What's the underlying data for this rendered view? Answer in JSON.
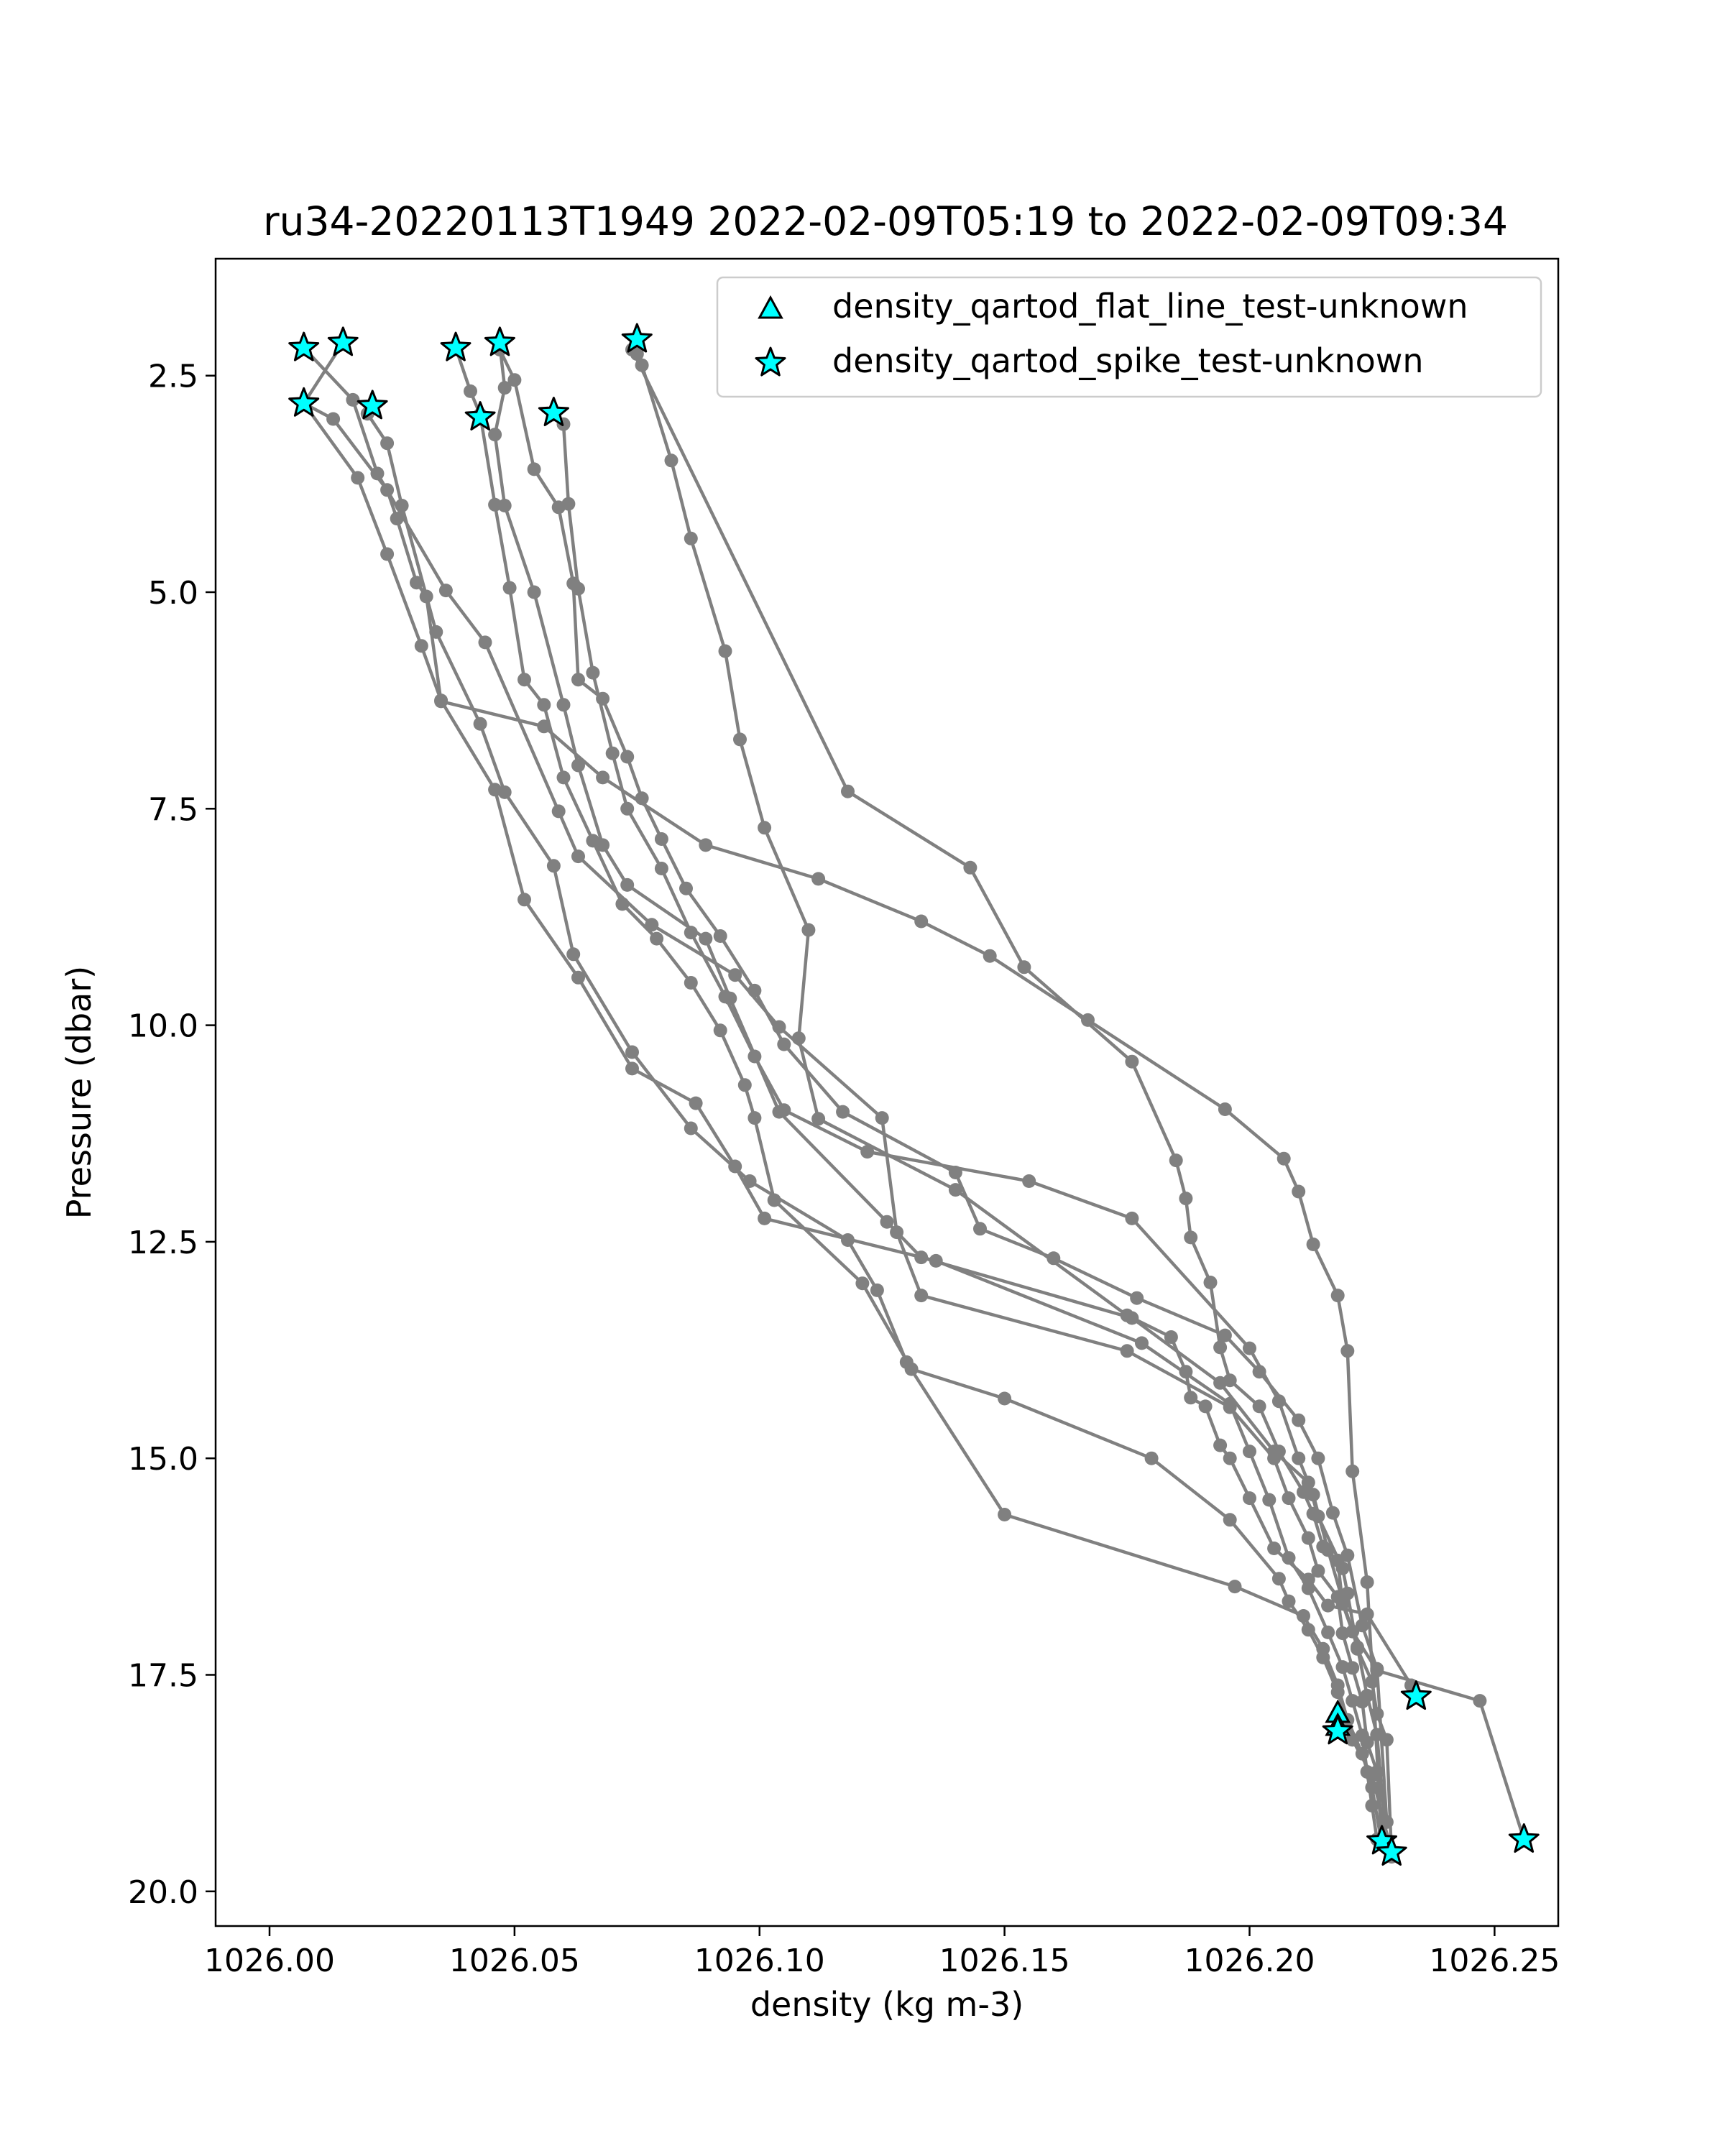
{
  "chart_data": {
    "type": "scatter",
    "title": "ru34-20220113T1949 2022-02-09T05:19 to 2022-02-09T09:34",
    "xlabel": "density (kg m-3)",
    "ylabel": "Pressure (dbar)",
    "xlim": [
      1025.989,
      1026.263
    ],
    "ylim": [
      20.4,
      1.15
    ],
    "y_inverted": true,
    "x_ticks": [
      1026.0,
      1026.05,
      1026.1,
      1026.15,
      1026.2,
      1026.25
    ],
    "x_tick_labels": [
      "1026.00",
      "1026.05",
      "1026.10",
      "1026.15",
      "1026.20",
      "1026.25"
    ],
    "y_ticks": [
      2.5,
      5.0,
      7.5,
      10.0,
      12.5,
      15.0,
      17.5,
      20.0
    ],
    "y_tick_labels": [
      "2.5",
      "5.0",
      "7.5",
      "10.0",
      "12.5",
      "15.0",
      "17.5",
      "20.0"
    ],
    "grid": false,
    "legend_position": "top-right",
    "colors": {
      "profile": "#808080",
      "marker_fill": "#00ffff",
      "marker_edge": "#000000"
    },
    "legend": [
      {
        "label": "density_qartod_flat_line_test-unknown",
        "marker": "triangle"
      },
      {
        "label": "density_qartod_spike_test-unknown",
        "marker": "star"
      }
    ],
    "profiles": [
      {
        "x": [
          1026.075,
          1026.076,
          1026.082,
          1026.086,
          1026.093,
          1026.096,
          1026.101,
          1026.11,
          1026.108,
          1026.112,
          1026.14,
          1026.175,
          1026.184,
          1026.187,
          1026.188,
          1026.191,
          1026.194,
          1026.196,
          1026.2,
          1026.205,
          1026.212,
          1026.216,
          1026.224,
          1026.233,
          1026.234
        ],
        "y": [
          2.25,
          2.38,
          3.48,
          4.38,
          5.68,
          6.7,
          7.72,
          8.9,
          10.15,
          11.08,
          11.9,
          13.35,
          13.6,
          14.0,
          14.3,
          14.4,
          14.85,
          15.0,
          15.46,
          16.04,
          16.4,
          16.7,
          16.8,
          17.62,
          17.75
        ]
      },
      {
        "x": [
          1026.074,
          1026.118,
          1026.143,
          1026.154,
          1026.176,
          1026.185,
          1026.187,
          1026.188,
          1026.192,
          1026.194,
          1026.196,
          1026.202,
          1026.206,
          1026.211,
          1026.213,
          1026.215,
          1026.218,
          1026.219,
          1026.221,
          1026.226,
          1026.247,
          1026.256
        ],
        "y": [
          2.2,
          7.3,
          8.18,
          9.33,
          10.42,
          11.56,
          12.0,
          12.45,
          12.97,
          13.72,
          14.1,
          14.4,
          14.92,
          15.39,
          15.64,
          16.02,
          16.18,
          16.68,
          17.0,
          17.45,
          17.8,
          19.4
        ]
      },
      {
        "x": [
          1026.047,
          1026.05,
          1026.054,
          1026.059,
          1026.062,
          1026.063,
          1026.068,
          1026.073,
          1026.076,
          1026.08,
          1026.085,
          1026.092,
          1026.099,
          1026.105,
          1026.117,
          1026.14,
          1026.145,
          1026.16,
          1026.177,
          1026.195,
          1026.202,
          1026.21,
          1026.214,
          1026.217,
          1026.22,
          1026.223,
          1026.226,
          1026.228
        ],
        "y": [
          2.2,
          2.55,
          3.58,
          4.02,
          4.9,
          6.01,
          6.23,
          6.9,
          7.38,
          7.85,
          8.42,
          8.97,
          9.6,
          10.22,
          11.0,
          11.7,
          12.35,
          12.69,
          13.15,
          13.58,
          14.0,
          14.56,
          15.0,
          15.63,
          16.12,
          16.93,
          17.43,
          19.2
        ]
      },
      {
        "x": [
          1026.015,
          1026.007,
          1026.013,
          1026.024,
          1026.026,
          1026.03,
          1026.032,
          1026.035,
          1026.056,
          1026.068,
          1026.089,
          1026.112,
          1026.133,
          1026.147,
          1026.167,
          1026.195,
          1026.207,
          1026.21,
          1026.213,
          1026.218,
          1026.22,
          1026.221,
          1026.224,
          1026.227
        ],
        "y": [
          2.12,
          2.82,
          3.0,
          3.82,
          4.15,
          4.89,
          5.05,
          6.26,
          6.55,
          7.14,
          7.92,
          8.31,
          8.8,
          9.2,
          9.94,
          10.97,
          11.54,
          11.92,
          12.53,
          13.12,
          13.76,
          15.15,
          16.43,
          19.42
        ]
      },
      {
        "x": [
          1026.038,
          1026.041,
          1026.043,
          1026.046,
          1026.049,
          1026.052,
          1026.056,
          1026.06,
          1026.066,
          1026.072,
          1026.079,
          1026.086,
          1026.092,
          1026.097,
          1026.099,
          1026.103,
          1026.121,
          1026.131,
          1026.15,
          1026.18,
          1026.196,
          1026.206,
          1026.208,
          1026.212,
          1026.215,
          1026.218,
          1026.221,
          1026.225,
          1026.229
        ],
        "y": [
          2.18,
          2.68,
          2.95,
          3.99,
          4.95,
          6.01,
          6.3,
          7.14,
          7.87,
          8.6,
          9.0,
          9.51,
          10.06,
          10.69,
          11.07,
          12.02,
          12.98,
          13.97,
          14.31,
          15.0,
          15.71,
          16.39,
          16.65,
          16.98,
          17.3,
          17.7,
          18.25,
          18.66,
          19.55
        ]
      },
      {
        "x": [
          1026.047,
          1026.048,
          1026.046,
          1026.048,
          1026.054,
          1026.06,
          1026.063,
          1026.068,
          1026.073,
          1026.089,
          1026.094,
          1026.104,
          1026.126,
          1026.133,
          1026.176,
          1026.194,
          1026.205,
          1026.212,
          1026.214,
          1026.219,
          1026.22,
          1026.222,
          1026.225,
          1026.226,
          1026.228,
          1026.229
        ],
        "y": [
          2.15,
          2.64,
          3.18,
          4.0,
          5.0,
          6.3,
          7.0,
          7.92,
          8.38,
          9.0,
          9.69,
          11.0,
          12.27,
          12.68,
          13.38,
          14.13,
          14.92,
          15.28,
          15.67,
          16.27,
          16.56,
          17.2,
          17.58,
          17.95,
          18.25,
          19.6
        ]
      },
      {
        "x": [
          1026.007,
          1026.018,
          1026.024,
          1026.031,
          1026.035,
          1026.046,
          1026.052,
          1026.063,
          1026.074,
          1026.087,
          1026.095,
          1026.101,
          1026.136,
          1026.178,
          1026.196,
          1026.2,
          1026.204,
          1026.208,
          1026.212,
          1026.216,
          1026.219,
          1026.221,
          1026.223,
          1026.224,
          1026.225,
          1026.226
        ],
        "y": [
          2.82,
          3.68,
          4.56,
          5.62,
          6.25,
          7.28,
          8.55,
          9.45,
          10.5,
          10.9,
          11.63,
          12.23,
          12.72,
          13.67,
          14.37,
          14.92,
          15.48,
          16.15,
          16.5,
          17.01,
          17.41,
          17.8,
          18.2,
          18.62,
          19.01,
          19.4
        ]
      },
      {
        "x": [
          1026.007,
          1026.017,
          1026.022,
          1026.036,
          1026.044,
          1026.059,
          1026.063,
          1026.078,
          1026.095,
          1026.104,
          1026.125,
          1026.128,
          1026.133,
          1026.175,
          1026.196,
          1026.205,
          1026.208,
          1026.212,
          1026.214,
          1026.218,
          1026.219,
          1026.221,
          1026.223,
          1026.224,
          1026.226,
          1026.227
        ],
        "y": [
          2.18,
          2.78,
          3.63,
          4.98,
          5.58,
          7.53,
          8.05,
          8.84,
          9.42,
          10.02,
          11.07,
          12.39,
          13.12,
          13.76,
          14.41,
          15.0,
          15.46,
          15.92,
          16.3,
          16.6,
          17.02,
          17.42,
          17.81,
          18.28,
          18.62,
          19.42
        ]
      },
      {
        "x": [
          1026.02,
          1026.024,
          1026.027,
          1026.034,
          1026.043,
          1026.048,
          1026.058,
          1026.062,
          1026.074,
          1026.086,
          1026.098,
          1026.118,
          1026.124,
          1026.13,
          1026.15,
          1026.197,
          1026.211,
          1026.215,
          1026.218,
          1026.22,
          1026.223,
          1026.225,
          1026.227
        ],
        "y": [
          2.94,
          3.28,
          4.0,
          5.46,
          6.52,
          7.31,
          8.16,
          9.18,
          10.31,
          11.19,
          11.8,
          12.48,
          13.06,
          13.89,
          15.65,
          16.48,
          16.82,
          17.2,
          17.62,
          18.02,
          18.41,
          18.8,
          19.46
        ]
      },
      {
        "x": [
          1026.058,
          1026.06,
          1026.061,
          1026.063,
          1026.066,
          1026.07,
          1026.073,
          1026.08,
          1026.086,
          1026.093,
          1026.099,
          1026.105,
          1026.122,
          1026.155,
          1026.176,
          1026.2,
          1026.206,
          1026.21,
          1026.213,
          1026.216,
          1026.219,
          1026.222,
          1026.224,
          1026.226,
          1026.228
        ],
        "y": [
          2.95,
          3.06,
          3.98,
          4.96,
          5.93,
          6.86,
          7.5,
          8.19,
          8.93,
          9.67,
          10.36,
          10.98,
          11.46,
          11.8,
          12.23,
          13.73,
          14.34,
          15.0,
          15.42,
          16.06,
          16.64,
          17.18,
          17.74,
          18.19,
          19.5
        ]
      }
    ],
    "flat_line_flags": [
      {
        "x": 1026.218,
        "y": 17.95
      },
      {
        "x": 1026.218,
        "y": 18.1
      }
    ],
    "spike_flags": [
      {
        "x": 1026.007,
        "y": 2.18
      },
      {
        "x": 1026.015,
        "y": 2.12
      },
      {
        "x": 1026.007,
        "y": 2.82
      },
      {
        "x": 1026.021,
        "y": 2.85
      },
      {
        "x": 1026.038,
        "y": 2.18
      },
      {
        "x": 1026.047,
        "y": 2.12
      },
      {
        "x": 1026.075,
        "y": 2.08
      },
      {
        "x": 1026.058,
        "y": 2.93
      },
      {
        "x": 1026.043,
        "y": 2.98
      },
      {
        "x": 1026.234,
        "y": 17.75
      },
      {
        "x": 1026.218,
        "y": 18.15
      },
      {
        "x": 1026.227,
        "y": 19.42
      },
      {
        "x": 1026.229,
        "y": 19.55
      },
      {
        "x": 1026.256,
        "y": 19.4
      }
    ]
  }
}
